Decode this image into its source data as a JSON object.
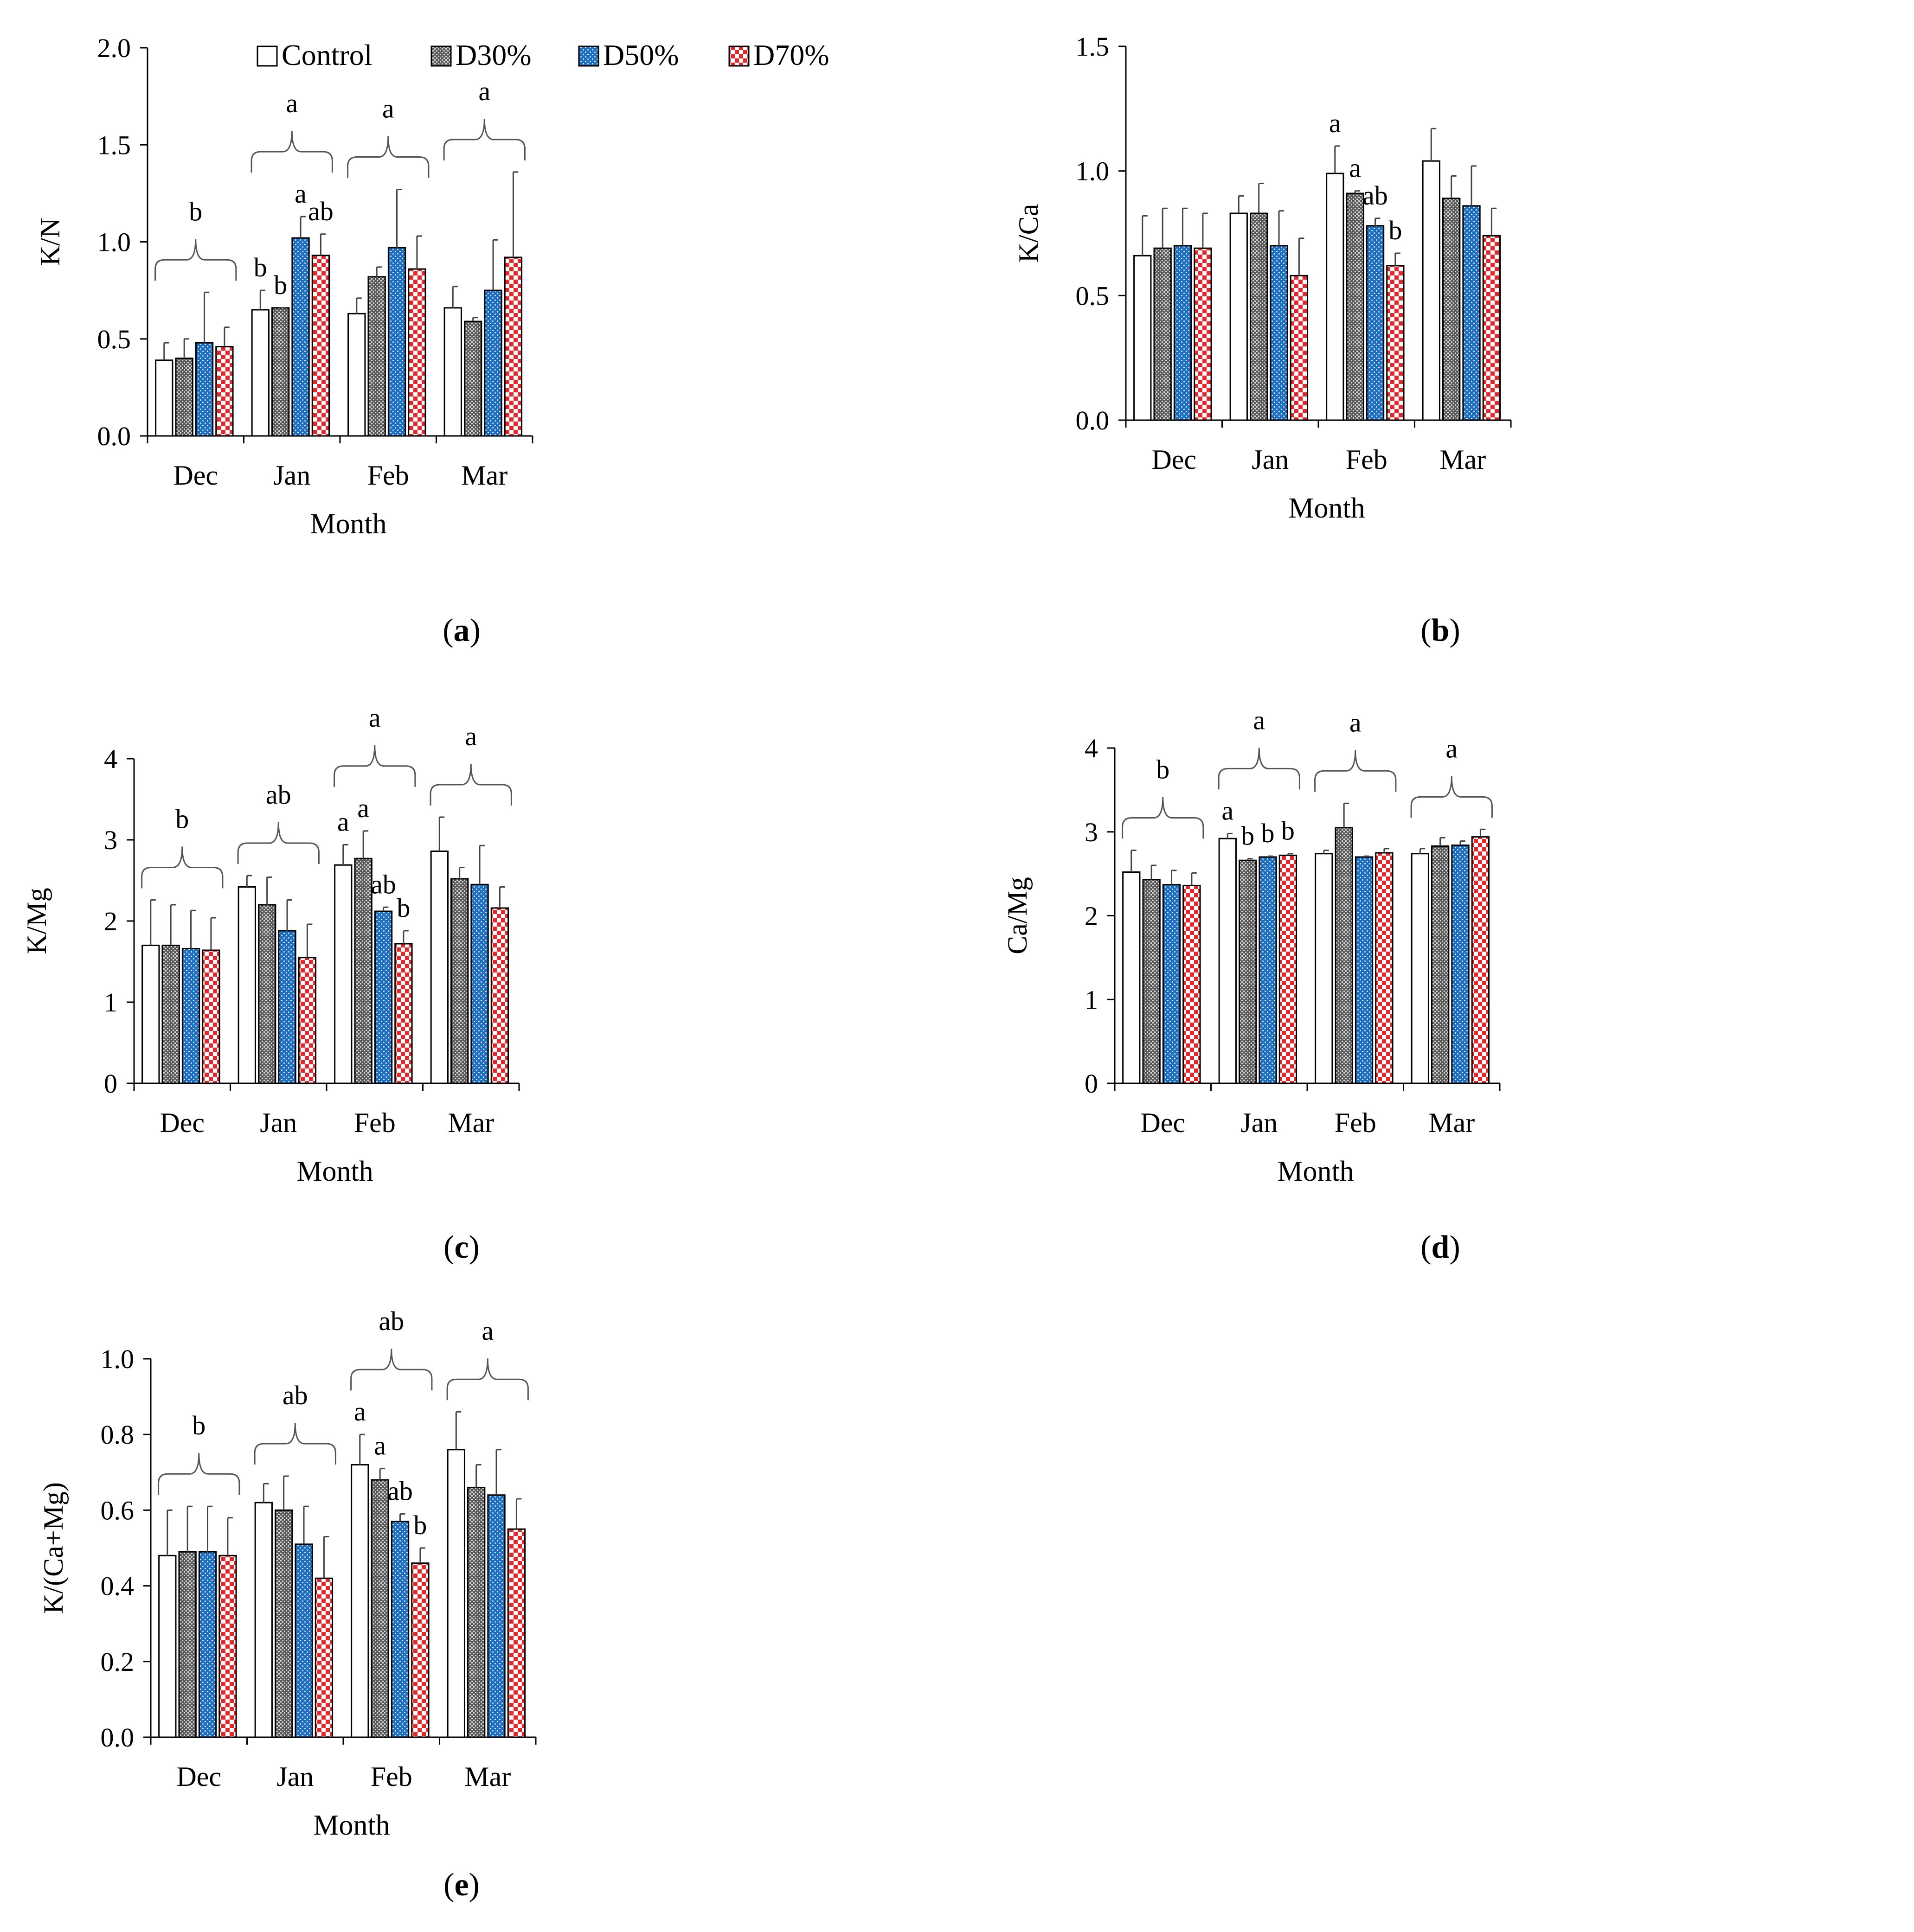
{
  "figure": {
    "panel_labels": [
      {
        "open": "(",
        "letter": "a",
        "close": ")"
      },
      {
        "open": "(",
        "letter": "b",
        "close": ")"
      },
      {
        "open": "(",
        "letter": "c",
        "close": ")"
      },
      {
        "open": "(",
        "letter": "d",
        "close": ")"
      },
      {
        "open": "(",
        "letter": "e",
        "close": ")"
      }
    ]
  },
  "colors": {
    "Control": "#ffffff",
    "D30%": "#5a5a5a",
    "D50%": "#1f6fc1",
    "D70%": "#e8262a",
    "axis": "#000000"
  },
  "chart_data": [
    {
      "type": "bar",
      "panel": "a",
      "xlabel": "Month",
      "ylabel": "K/N",
      "categories": [
        "Dec",
        "Jan",
        "Feb",
        "Mar"
      ],
      "legend": [
        "Control",
        "D30%",
        "D50%",
        "D70%"
      ],
      "yticks": [
        "0.0",
        "0.5",
        "1.0",
        "1.5",
        "2.0"
      ],
      "ylim": [
        0,
        2.0
      ],
      "series": [
        {
          "name": "Control",
          "values": [
            0.39,
            0.65,
            0.63,
            0.66
          ],
          "errors": [
            0.09,
            0.1,
            0.08,
            0.11
          ]
        },
        {
          "name": "D30%",
          "values": [
            0.4,
            0.66,
            0.82,
            0.59
          ],
          "errors": [
            0.1,
            0.0,
            0.05,
            0.02
          ]
        },
        {
          "name": "D50%",
          "values": [
            0.48,
            1.02,
            0.97,
            0.75
          ],
          "errors": [
            0.26,
            0.11,
            0.3,
            0.26
          ]
        },
        {
          "name": "D70%",
          "values": [
            0.46,
            0.93,
            0.86,
            0.92
          ],
          "errors": [
            0.1,
            0.11,
            0.17,
            0.44
          ]
        }
      ],
      "bar_letters": [
        {
          "month": 1,
          "series": 0,
          "text": "b"
        },
        {
          "month": 1,
          "series": 1,
          "text": "b"
        },
        {
          "month": 1,
          "series": 2,
          "text": "a"
        },
        {
          "month": 1,
          "series": 3,
          "text": "ab"
        }
      ],
      "group_letters": [
        "b",
        "a",
        "a",
        "a"
      ]
    },
    {
      "type": "bar",
      "panel": "b",
      "xlabel": "Month",
      "ylabel": "K/Ca",
      "categories": [
        "Dec",
        "Jan",
        "Feb",
        "Mar"
      ],
      "legend": [],
      "yticks": [
        "0.0",
        "0.5",
        "1.0",
        "1.5"
      ],
      "ylim": [
        0,
        1.5
      ],
      "series": [
        {
          "name": "Control",
          "values": [
            0.66,
            0.83,
            0.99,
            1.04
          ],
          "errors": [
            0.16,
            0.07,
            0.11,
            0.13
          ]
        },
        {
          "name": "D30%",
          "values": [
            0.69,
            0.83,
            0.91,
            0.89
          ],
          "errors": [
            0.16,
            0.12,
            0.01,
            0.09
          ]
        },
        {
          "name": "D50%",
          "values": [
            0.7,
            0.7,
            0.78,
            0.86
          ],
          "errors": [
            0.15,
            0.14,
            0.03,
            0.16
          ]
        },
        {
          "name": "D70%",
          "values": [
            0.69,
            0.58,
            0.62,
            0.74
          ],
          "errors": [
            0.14,
            0.15,
            0.05,
            0.11
          ]
        }
      ],
      "bar_letters": [
        {
          "month": 2,
          "series": 0,
          "text": "a"
        },
        {
          "month": 2,
          "series": 1,
          "text": "a"
        },
        {
          "month": 2,
          "series": 2,
          "text": "ab"
        },
        {
          "month": 2,
          "series": 3,
          "text": "b"
        }
      ],
      "group_letters": []
    },
    {
      "type": "bar",
      "panel": "c",
      "xlabel": "Month",
      "ylabel": "K/Mg",
      "categories": [
        "Dec",
        "Jan",
        "Feb",
        "Mar"
      ],
      "legend": [],
      "yticks": [
        "0",
        "1",
        "2",
        "3",
        "4"
      ],
      "ylim": [
        0,
        4
      ],
      "series": [
        {
          "name": "Control",
          "values": [
            1.7,
            2.42,
            2.69,
            2.86
          ],
          "errors": [
            0.56,
            0.14,
            0.25,
            0.42
          ]
        },
        {
          "name": "D30%",
          "values": [
            1.7,
            2.2,
            2.77,
            2.52
          ],
          "errors": [
            0.5,
            0.34,
            0.34,
            0.14
          ]
        },
        {
          "name": "D50%",
          "values": [
            1.66,
            1.88,
            2.12,
            2.45
          ],
          "errors": [
            0.47,
            0.38,
            0.05,
            0.48
          ]
        },
        {
          "name": "D70%",
          "values": [
            1.64,
            1.55,
            1.72,
            2.16
          ],
          "errors": [
            0.4,
            0.41,
            0.16,
            0.26
          ]
        }
      ],
      "bar_letters": [
        {
          "month": 2,
          "series": 0,
          "text": "a"
        },
        {
          "month": 2,
          "series": 1,
          "text": "a"
        },
        {
          "month": 2,
          "series": 2,
          "text": "ab"
        },
        {
          "month": 2,
          "series": 3,
          "text": "b"
        }
      ],
      "group_letters": [
        "b",
        "ab",
        "a",
        "a"
      ]
    },
    {
      "type": "bar",
      "panel": "d",
      "xlabel": "Month",
      "ylabel": "Ca/Mg",
      "categories": [
        "Dec",
        "Jan",
        "Feb",
        "Mar"
      ],
      "legend": [],
      "yticks": [
        "0",
        "1",
        "2",
        "3",
        "4"
      ],
      "ylim": [
        0,
        4
      ],
      "series": [
        {
          "name": "Control",
          "values": [
            2.52,
            2.92,
            2.74,
            2.74
          ],
          "errors": [
            0.26,
            0.06,
            0.04,
            0.06
          ]
        },
        {
          "name": "D30%",
          "values": [
            2.43,
            2.66,
            3.05,
            2.83
          ],
          "errors": [
            0.17,
            0.02,
            0.29,
            0.1
          ]
        },
        {
          "name": "D50%",
          "values": [
            2.37,
            2.7,
            2.7,
            2.84
          ],
          "errors": [
            0.17,
            0.01,
            0.01,
            0.05
          ]
        },
        {
          "name": "D70%",
          "values": [
            2.36,
            2.72,
            2.75,
            2.94
          ],
          "errors": [
            0.15,
            0.02,
            0.05,
            0.09
          ]
        }
      ],
      "bar_letters": [
        {
          "month": 1,
          "series": 0,
          "text": "a"
        },
        {
          "month": 1,
          "series": 1,
          "text": "b"
        },
        {
          "month": 1,
          "series": 2,
          "text": "b"
        },
        {
          "month": 1,
          "series": 3,
          "text": "b"
        }
      ],
      "group_letters": [
        "b",
        "a",
        "a",
        "a"
      ]
    },
    {
      "type": "bar",
      "panel": "e",
      "xlabel": "Month",
      "ylabel": "K/(Ca+Mg)",
      "categories": [
        "Dec",
        "Jan",
        "Feb",
        "Mar"
      ],
      "legend": [],
      "yticks": [
        "0.0",
        "0.2",
        "0.4",
        "0.6",
        "0.8",
        "1.0"
      ],
      "ylim": [
        0,
        1.0
      ],
      "series": [
        {
          "name": "Control",
          "values": [
            0.48,
            0.62,
            0.72,
            0.76
          ],
          "errors": [
            0.12,
            0.05,
            0.08,
            0.1
          ]
        },
        {
          "name": "D30%",
          "values": [
            0.49,
            0.6,
            0.68,
            0.66
          ],
          "errors": [
            0.12,
            0.09,
            0.03,
            0.06
          ]
        },
        {
          "name": "D50%",
          "values": [
            0.49,
            0.51,
            0.57,
            0.64
          ],
          "errors": [
            0.12,
            0.1,
            0.02,
            0.12
          ]
        },
        {
          "name": "D70%",
          "values": [
            0.48,
            0.42,
            0.46,
            0.55
          ],
          "errors": [
            0.1,
            0.11,
            0.04,
            0.08
          ]
        }
      ],
      "bar_letters": [
        {
          "month": 2,
          "series": 0,
          "text": "a"
        },
        {
          "month": 2,
          "series": 1,
          "text": "a"
        },
        {
          "month": 2,
          "series": 2,
          "text": "ab"
        },
        {
          "month": 2,
          "series": 3,
          "text": "b"
        }
      ],
      "group_letters": [
        "b",
        "ab",
        "ab",
        "a"
      ]
    }
  ]
}
